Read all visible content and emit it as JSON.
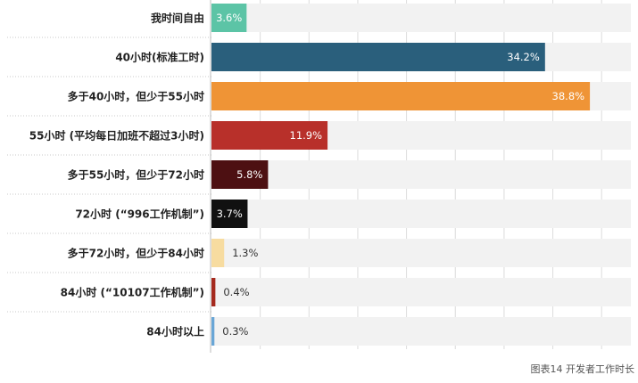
{
  "chart_data": {
    "type": "bar",
    "orientation": "horizontal",
    "categories": [
      "我时间自由",
      "40小时(标准工时)",
      "多于40小时，但少于55小时",
      "55小时 (平均每日加班不超过3小时)",
      "多于55小时，但少于72小时",
      "72小时 (“996工作机制”)",
      "多于72小时，但少于84小时",
      "84小时 (“10107工作机制”)",
      "84小时以上"
    ],
    "values": [
      3.6,
      34.2,
      38.8,
      11.9,
      5.8,
      3.7,
      1.3,
      0.4,
      0.3
    ],
    "value_labels": [
      "3.6%",
      "34.2%",
      "38.8%",
      "11.9%",
      "5.8%",
      "3.7%",
      "1.3%",
      "0.4%",
      "0.3%"
    ],
    "colors": [
      "#5cc4a6",
      "#2a5f7c",
      "#ef9436",
      "#b8302a",
      "#4d1012",
      "#111111",
      "#f7dca0",
      "#a52a1e",
      "#69a6d6"
    ],
    "label_colors": [
      "#ffffff",
      "#ffffff",
      "#ffffff",
      "#ffffff",
      "#ffffff",
      "#ffffff",
      "#333333",
      "#333333",
      "#333333"
    ],
    "label_inside": [
      true,
      true,
      true,
      true,
      true,
      true,
      false,
      false,
      false
    ],
    "xlim": [
      0,
      43
    ],
    "grid": true,
    "track_color": "#f2f2f2",
    "caption": "图表14 开发者工作时长"
  }
}
